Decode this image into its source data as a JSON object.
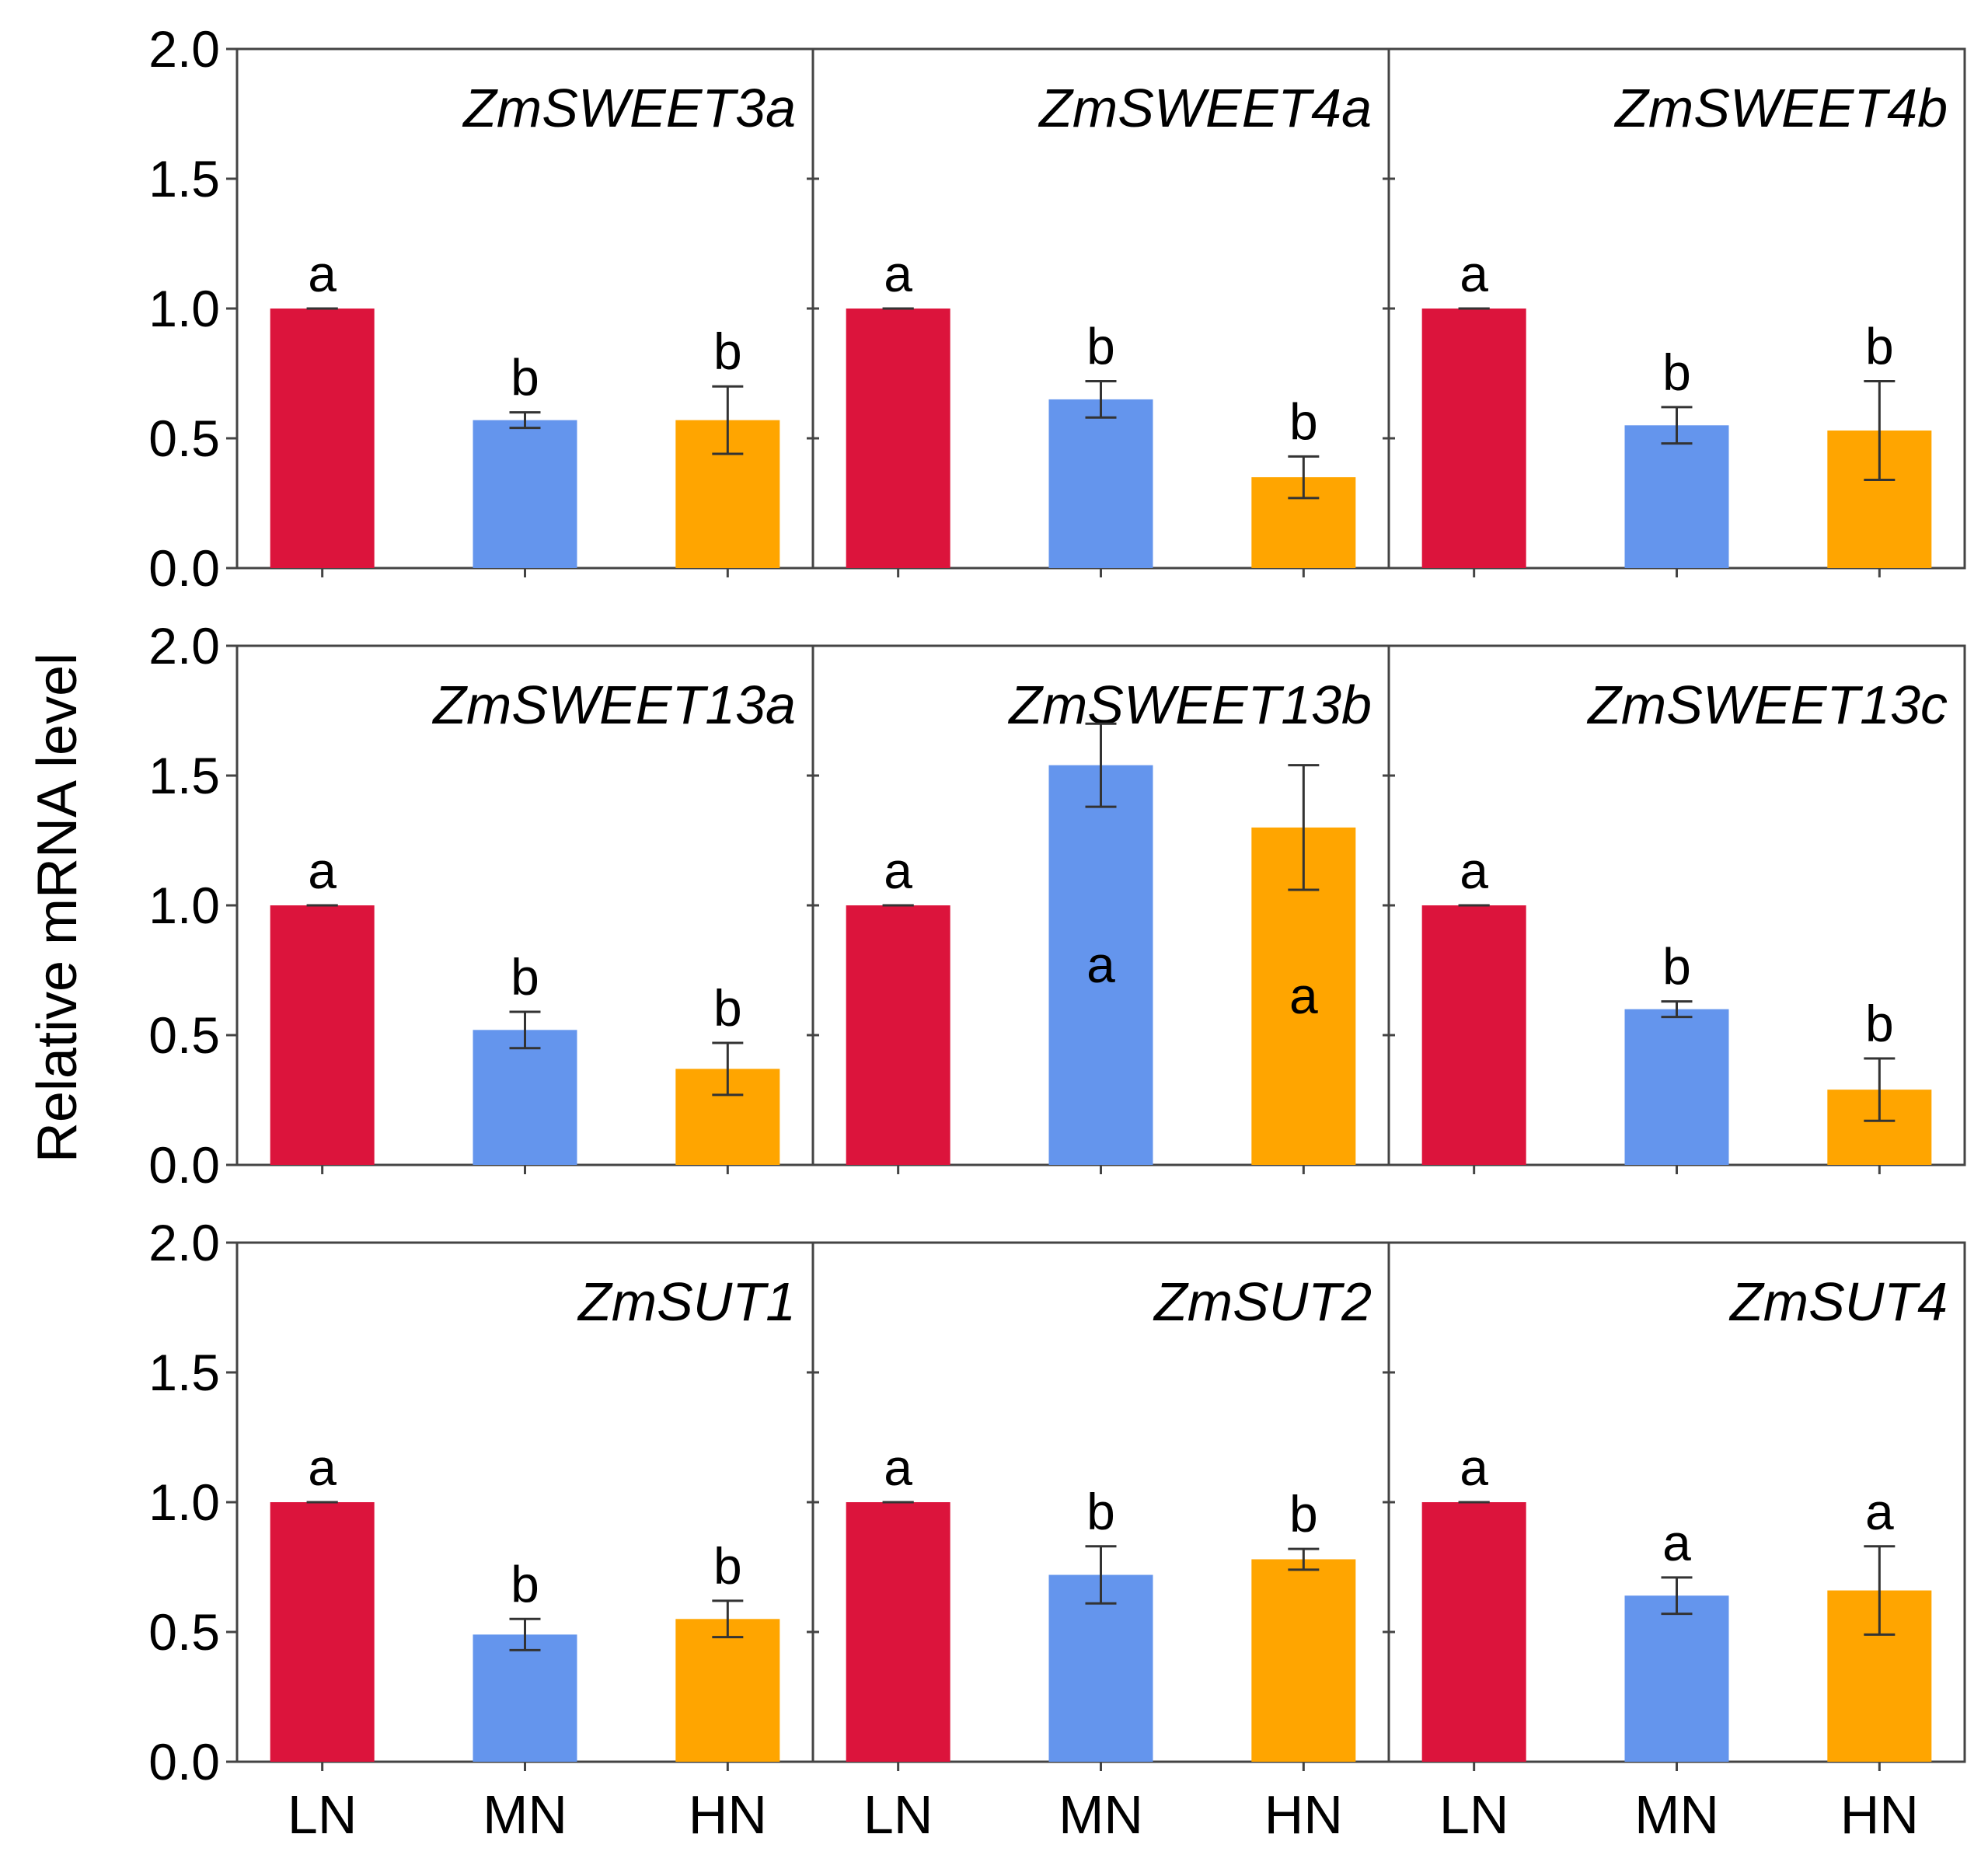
{
  "chart_data": {
    "type": "bar",
    "ylabel": "Relative mRNA level",
    "ylim": [
      0,
      2.0
    ],
    "yticks": [
      "0.0",
      "0.5",
      "1.0",
      "1.5",
      "2.0"
    ],
    "categories": [
      "LN",
      "MN",
      "HN"
    ],
    "colors": {
      "LN": "#DC143C",
      "MN": "#6495ED",
      "HN": "#FFA500"
    },
    "panels": [
      {
        "gene": "ZmSWEET3a",
        "values": [
          1.0,
          0.57,
          0.57
        ],
        "errors": [
          0.0,
          0.03,
          0.13
        ],
        "letters": [
          "a",
          "b",
          "b"
        ]
      },
      {
        "gene": "ZmSWEET4a",
        "values": [
          1.0,
          0.65,
          0.35
        ],
        "errors": [
          0.0,
          0.07,
          0.08
        ],
        "letters": [
          "a",
          "b",
          "b"
        ]
      },
      {
        "gene": "ZmSWEET4b",
        "values": [
          1.0,
          0.55,
          0.53
        ],
        "errors": [
          0.0,
          0.07,
          0.19
        ],
        "letters": [
          "a",
          "b",
          "b"
        ]
      },
      {
        "gene": "ZmSWEET13a",
        "values": [
          1.0,
          0.52,
          0.37
        ],
        "errors": [
          0.0,
          0.07,
          0.1
        ],
        "letters": [
          "a",
          "b",
          "b"
        ]
      },
      {
        "gene": "ZmSWEET13b",
        "values": [
          1.0,
          1.54,
          1.3
        ],
        "errors": [
          0.0,
          0.16,
          0.24
        ],
        "letters": [
          "a",
          "a",
          "a"
        ]
      },
      {
        "gene": "ZmSWEET13c",
        "values": [
          1.0,
          0.6,
          0.29
        ],
        "errors": [
          0.0,
          0.03,
          0.12
        ],
        "letters": [
          "a",
          "b",
          "b"
        ]
      },
      {
        "gene": "ZmSUT1",
        "values": [
          1.0,
          0.49,
          0.55
        ],
        "errors": [
          0.0,
          0.06,
          0.07
        ],
        "letters": [
          "a",
          "b",
          "b"
        ]
      },
      {
        "gene": "ZmSUT2",
        "values": [
          1.0,
          0.72,
          0.78
        ],
        "errors": [
          0.0,
          0.11,
          0.04
        ],
        "letters": [
          "a",
          "b",
          "b"
        ]
      },
      {
        "gene": "ZmSUT4",
        "values": [
          1.0,
          0.64,
          0.66
        ],
        "errors": [
          0.0,
          0.07,
          0.17
        ],
        "letters": [
          "a",
          "a",
          "a"
        ]
      }
    ]
  }
}
